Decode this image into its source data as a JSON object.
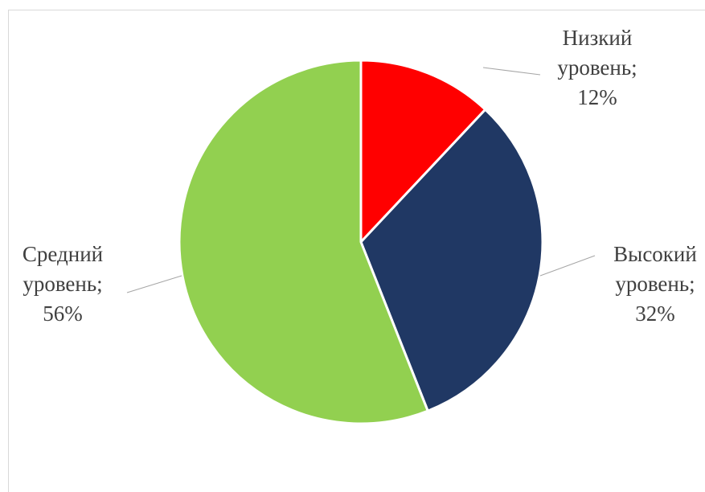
{
  "chart_data": {
    "type": "pie",
    "title": "",
    "legend": "none",
    "slices": [
      {
        "label_lines": [
          "Низкий",
          "уровень;",
          "12%"
        ],
        "value": 12,
        "color": "#FF0000"
      },
      {
        "label_lines": [
          "Высокий",
          "уровень;",
          "32%"
        ],
        "value": 32,
        "color": "#203864"
      },
      {
        "label_lines": [
          "Средний",
          "уровень;",
          "56%"
        ],
        "value": 56,
        "color": "#92D050"
      }
    ]
  }
}
